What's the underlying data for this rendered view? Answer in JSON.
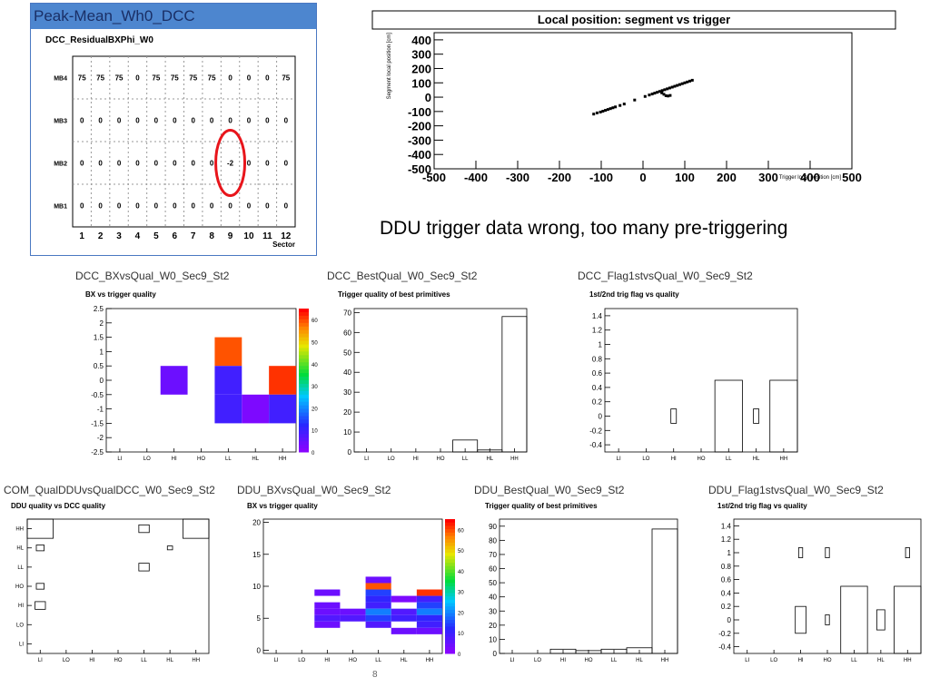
{
  "peak": {
    "window_title": "Peak-Mean_Wh0_DCC",
    "plot_title": "DCC_ResidualBXPhi_W0",
    "rows": [
      "MB4",
      "MB3",
      "MB2",
      "MB1"
    ],
    "sectors": [
      "1",
      "2",
      "3",
      "4",
      "5",
      "6",
      "7",
      "8",
      "9",
      "10",
      "11",
      "12"
    ],
    "xlabel": "Sector",
    "values": [
      [
        "75",
        "75",
        "75",
        "0",
        "75",
        "75",
        "75",
        "75",
        "0",
        "0",
        "0",
        "75"
      ],
      [
        "0",
        "0",
        "0",
        "0",
        "0",
        "0",
        "0",
        "0",
        "0",
        "0",
        "0",
        "0"
      ],
      [
        "0",
        "0",
        "0",
        "0",
        "0",
        "0",
        "0",
        "0",
        "-2",
        "0",
        "0",
        "0"
      ],
      [
        "0",
        "0",
        "0",
        "0",
        "0",
        "0",
        "0",
        "0",
        "0",
        "0",
        "0",
        "0"
      ]
    ],
    "highlight_color": "#e8151b"
  },
  "localpos": {
    "title": "Local position: segment vs trigger",
    "ylabel": "Segment local position [cm]",
    "xlabel": "Trigger local position [cm]",
    "yticks": [
      "400",
      "300",
      "200",
      "100",
      "0",
      "-100",
      "-200",
      "-300",
      "-400",
      "-500"
    ],
    "xticks": [
      "-500",
      "-400",
      "-300",
      "-200",
      "-100",
      "0",
      "100",
      "200",
      "300",
      "400",
      "500"
    ]
  },
  "caption": "DDU trigger data wrong, too many pre-triggering",
  "page_number": "8",
  "qual_labels": [
    "LI",
    "LO",
    "HI",
    "HO",
    "LL",
    "HL",
    "HH"
  ],
  "palette_ticks_a": [
    "60",
    "50",
    "40",
    "30",
    "20",
    "10",
    "0"
  ],
  "palette_ticks_b": [
    "60",
    "50",
    "40",
    "30",
    "20",
    "10",
    "0"
  ],
  "panels": [
    {
      "name": "DCC_BXvsQual_W0_Sec9_St2",
      "sub": "BX vs trigger quality",
      "yticks": [
        "2.5",
        "2",
        "1.5",
        "1",
        "0.5",
        "0",
        "-0.5",
        "-1",
        "-1.5",
        "-2",
        "-2.5"
      ]
    },
    {
      "name": "DCC_BestQual_W0_Sec9_St2",
      "sub": "Trigger quality of best primitives",
      "yticks": [
        "70",
        "60",
        "50",
        "40",
        "30",
        "20",
        "10",
        "0"
      ]
    },
    {
      "name": "DCC_Flag1stvsQual_W0_Sec9_St2",
      "sub": "1st/2nd trig flag vs quality",
      "yticks": [
        "1.4",
        "1.2",
        "1",
        "0.8",
        "0.6",
        "0.4",
        "0.2",
        "0",
        "-0.2",
        "-0.4"
      ]
    },
    {
      "name": "COM_QualDDUvsQualDCC_W0_Sec9_St2",
      "sub": "DDU quality vs DCC quality",
      "yticks": [
        "HH",
        "HL",
        "LL",
        "HO",
        "HI",
        "LO",
        "LI"
      ]
    },
    {
      "name": "DDU_BXvsQual_W0_Sec9_St2",
      "sub": "BX vs trigger quality",
      "yticks": [
        "20",
        "15",
        "10",
        "5",
        "0"
      ]
    },
    {
      "name": "DDU_BestQual_W0_Sec9_St2",
      "sub": "Trigger quality of best primitives",
      "yticks": [
        "90",
        "80",
        "70",
        "60",
        "50",
        "40",
        "30",
        "20",
        "10",
        "0"
      ]
    },
    {
      "name": "DDU_Flag1stvsQual_W0_Sec9_St2",
      "sub": "1st/2nd trig flag vs quality",
      "yticks": [
        "1.4",
        "1.2",
        "1",
        "0.8",
        "0.6",
        "0.4",
        "0.2",
        "0",
        "-0.2",
        "-0.4"
      ]
    }
  ],
  "chart_data": [
    {
      "type": "table",
      "title": "DCC_ResidualBXPhi_W0",
      "rows": [
        "MB4",
        "MB3",
        "MB2",
        "MB1"
      ],
      "columns": [
        "1",
        "2",
        "3",
        "4",
        "5",
        "6",
        "7",
        "8",
        "9",
        "10",
        "11",
        "12"
      ],
      "values": [
        [
          75,
          75,
          75,
          0,
          75,
          75,
          75,
          75,
          0,
          0,
          0,
          75
        ],
        [
          0,
          0,
          0,
          0,
          0,
          0,
          0,
          0,
          0,
          0,
          0,
          0
        ],
        [
          0,
          0,
          0,
          0,
          0,
          0,
          0,
          0,
          -2,
          0,
          0,
          0
        ],
        [
          0,
          0,
          0,
          0,
          0,
          0,
          0,
          0,
          0,
          0,
          0,
          0
        ]
      ]
    },
    {
      "type": "scatter",
      "title": "Local position: segment vs trigger",
      "xlim": [
        -500,
        500
      ],
      "ylim": [
        -500,
        500
      ],
      "x": [
        -118,
        -110,
        -102,
        -96,
        -90,
        -84,
        -78,
        -72,
        -66,
        -55,
        -45,
        -20,
        5,
        15,
        22,
        28,
        34,
        40,
        46,
        52,
        58,
        64,
        70,
        76,
        82,
        88,
        94,
        100,
        106,
        112,
        118,
        45,
        50,
        55,
        60,
        65
      ],
      "y": [
        -118,
        -110,
        -104,
        -98,
        -92,
        -86,
        -80,
        -74,
        -68,
        -58,
        -48,
        -20,
        5,
        15,
        22,
        28,
        34,
        40,
        46,
        52,
        58,
        64,
        70,
        76,
        82,
        88,
        94,
        100,
        106,
        112,
        118,
        30,
        20,
        10,
        8,
        12
      ]
    },
    {
      "type": "heatmap",
      "title": "BX vs trigger quality",
      "categories": [
        "LI",
        "LO",
        "HI",
        "HO",
        "LL",
        "HL",
        "HH"
      ],
      "ylim": [
        -2.5,
        2.5
      ],
      "zlim": [
        0,
        65
      ],
      "cells": [
        {
          "x": "HI",
          "y0": -0.5,
          "y1": 0.5,
          "z": 5
        },
        {
          "x": "LL",
          "y0": 0.5,
          "y1": 1.5,
          "z": 60
        },
        {
          "x": "LL",
          "y0": -0.5,
          "y1": 0.5,
          "z": 10
        },
        {
          "x": "LL",
          "y0": -1.5,
          "y1": -0.5,
          "z": 10
        },
        {
          "x": "HL",
          "y0": -1.5,
          "y1": -0.5,
          "z": 3
        },
        {
          "x": "HH",
          "y0": -0.5,
          "y1": 0.5,
          "z": 62
        },
        {
          "x": "HH",
          "y0": -1.5,
          "y1": -0.5,
          "z": 10
        }
      ]
    },
    {
      "type": "bar",
      "title": "Trigger quality of best primitives",
      "categories": [
        "LI",
        "LO",
        "HI",
        "HO",
        "LL",
        "HL",
        "HH"
      ],
      "values": [
        0,
        0,
        0,
        0,
        6,
        1,
        68
      ],
      "ylim": [
        0,
        72
      ]
    },
    {
      "type": "heatmap",
      "title": "1st/2nd trig flag vs quality",
      "categories": [
        "LI",
        "LO",
        "HI",
        "HO",
        "LL",
        "HL",
        "HH"
      ],
      "ylim": [
        -0.5,
        1.5
      ],
      "cells": [
        {
          "x": "HI",
          "y": 0,
          "size": 0.2
        },
        {
          "x": "LL",
          "y": 0,
          "size": 1
        },
        {
          "x": "HL",
          "y": 0,
          "size": 0.2
        },
        {
          "x": "HH",
          "y": 0,
          "size": 1
        }
      ]
    },
    {
      "type": "heatmap",
      "title": "DDU quality vs DCC quality",
      "categories": [
        "LI",
        "LO",
        "HI",
        "HO",
        "LL",
        "HL",
        "HH"
      ],
      "cells": [
        {
          "x": "LI",
          "y": "HH",
          "size": 1
        },
        {
          "x": "LI",
          "y": "HL",
          "size": 0.3
        },
        {
          "x": "LI",
          "y": "HO",
          "size": 0.3
        },
        {
          "x": "LI",
          "y": "HI",
          "size": 0.4
        },
        {
          "x": "LL",
          "y": "HH",
          "size": 0.4
        },
        {
          "x": "LL",
          "y": "LL",
          "size": 0.4
        },
        {
          "x": "HL",
          "y": "HL",
          "size": 0.2
        },
        {
          "x": "HH",
          "y": "HH",
          "size": 1
        }
      ]
    },
    {
      "type": "heatmap",
      "title": "BX vs trigger quality",
      "categories": [
        "LI",
        "LO",
        "HI",
        "HO",
        "LL",
        "HL",
        "HH"
      ],
      "ylim": [
        -0.5,
        20.5
      ],
      "zlim": [
        0,
        65
      ],
      "cells": [
        {
          "x": "HI",
          "y": 9,
          "z": 5
        },
        {
          "x": "HI",
          "y": 7,
          "z": 5
        },
        {
          "x": "HI",
          "y": 6,
          "z": 5
        },
        {
          "x": "HI",
          "y": 5,
          "z": 8
        },
        {
          "x": "HI",
          "y": 4,
          "z": 5
        },
        {
          "x": "HO",
          "y": 6,
          "z": 5
        },
        {
          "x": "HO",
          "y": 5,
          "z": 8
        },
        {
          "x": "LL",
          "y": 11,
          "z": 5
        },
        {
          "x": "LL",
          "y": 10,
          "z": 60
        },
        {
          "x": "LL",
          "y": 9,
          "z": 15
        },
        {
          "x": "LL",
          "y": 8,
          "z": 12
        },
        {
          "x": "LL",
          "y": 7,
          "z": 10
        },
        {
          "x": "LL",
          "y": 6,
          "z": 20
        },
        {
          "x": "LL",
          "y": 5,
          "z": 15
        },
        {
          "x": "LL",
          "y": 4,
          "z": 8
        },
        {
          "x": "HL",
          "y": 8,
          "z": 3
        },
        {
          "x": "HL",
          "y": 6,
          "z": 8
        },
        {
          "x": "HL",
          "y": 5,
          "z": 10
        },
        {
          "x": "HL",
          "y": 3,
          "z": 5
        },
        {
          "x": "HH",
          "y": 9,
          "z": 62
        },
        {
          "x": "HH",
          "y": 8,
          "z": 10
        },
        {
          "x": "HH",
          "y": 7,
          "z": 15
        },
        {
          "x": "HH",
          "y": 6,
          "z": 20
        },
        {
          "x": "HH",
          "y": 5,
          "z": 12
        },
        {
          "x": "HH",
          "y": 4,
          "z": 10
        },
        {
          "x": "HH",
          "y": 3,
          "z": 5
        }
      ]
    },
    {
      "type": "bar",
      "title": "Trigger quality of best primitives",
      "categories": [
        "LI",
        "LO",
        "HI",
        "HO",
        "LL",
        "HL",
        "HH"
      ],
      "values": [
        0,
        0,
        3,
        2,
        3,
        4,
        88
      ],
      "ylim": [
        0,
        95
      ]
    },
    {
      "type": "heatmap",
      "title": "1st/2nd trig flag vs quality",
      "categories": [
        "LI",
        "LO",
        "HI",
        "HO",
        "LL",
        "HL",
        "HH"
      ],
      "ylim": [
        -0.5,
        1.5
      ],
      "cells": [
        {
          "x": "HI",
          "y": 1,
          "size": 0.15
        },
        {
          "x": "HI",
          "y": 0,
          "size": 0.4
        },
        {
          "x": "HO",
          "y": 1,
          "size": 0.15
        },
        {
          "x": "HO",
          "y": 0,
          "size": 0.15
        },
        {
          "x": "LL",
          "y": 0,
          "size": 1
        },
        {
          "x": "HL",
          "y": 0,
          "size": 0.3
        },
        {
          "x": "HH",
          "y": 1,
          "size": 0.15
        },
        {
          "x": "HH",
          "y": 0,
          "size": 1
        }
      ]
    }
  ]
}
